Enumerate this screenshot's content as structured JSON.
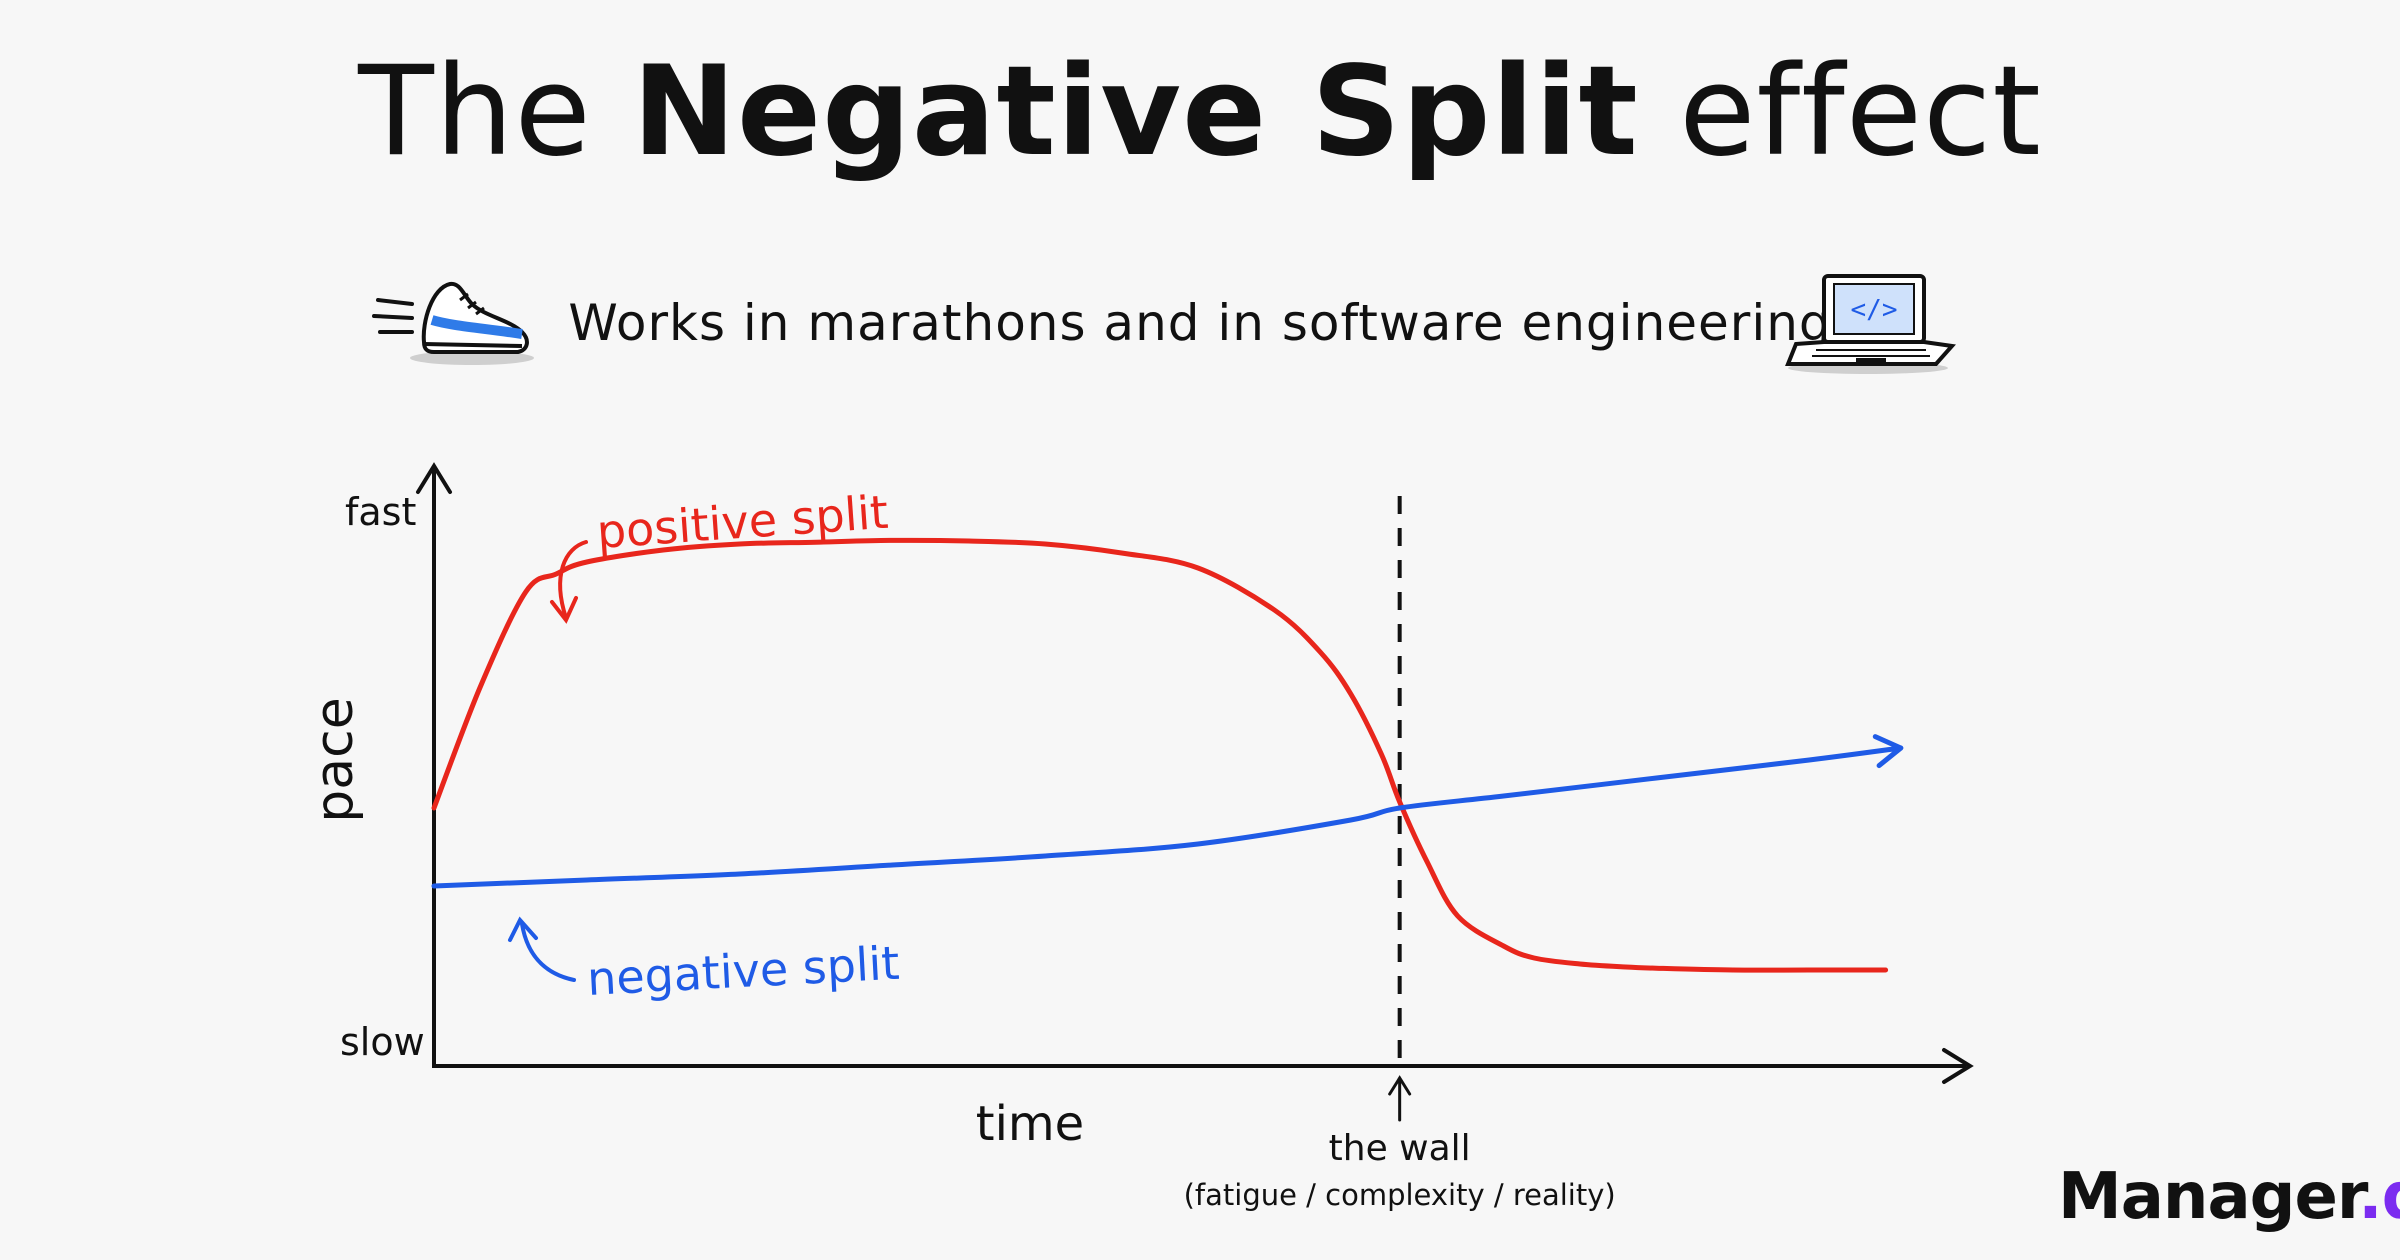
{
  "title": {
    "pre": "The",
    "bold": "Negative Split",
    "post": "effect"
  },
  "subtitle": "Works in marathons and in software engineering",
  "icons": {
    "left": "running-shoe-icon",
    "right": "laptop-code-icon"
  },
  "brand": {
    "name": "Manager",
    "tld": ".dev",
    "accent": "#7b2cf0"
  },
  "chart_data": {
    "type": "line",
    "xlabel": "time",
    "ylabel": "pace",
    "y_tick_labels": {
      "top": "fast",
      "bottom": "slow"
    },
    "xlim": [
      0,
      100
    ],
    "ylim": [
      0,
      100
    ],
    "grid": false,
    "legend": "none",
    "series": [
      {
        "name": "positive split",
        "color": "#e8261c",
        "x": [
          0,
          3,
          6,
          8,
          10,
          15,
          20,
          25,
          30,
          35,
          40,
          45,
          50,
          55,
          58,
          60,
          62,
          63.2,
          65,
          67,
          70,
          72,
          75,
          78,
          80,
          85,
          90,
          95
        ],
        "y": [
          43,
          63,
          79,
          82,
          84,
          86,
          87,
          87.3,
          87.6,
          87.5,
          87,
          85.5,
          83,
          76,
          69,
          62,
          52,
          44,
          34,
          25,
          20,
          18,
          17,
          16.5,
          16.3,
          16,
          16,
          16
        ]
      },
      {
        "name": "negative split",
        "color": "#1f5be6",
        "x": [
          0,
          10,
          20,
          30,
          40,
          50,
          60,
          63.2,
          70,
          80,
          90,
          96
        ],
        "y": [
          30,
          31,
          32,
          33.5,
          35,
          37,
          41,
          43,
          45,
          48,
          51,
          53
        ]
      }
    ],
    "annotations": [
      {
        "text": "positive split",
        "series": 0
      },
      {
        "text": "negative split",
        "series": 1
      },
      {
        "type": "vline",
        "x": 63.2,
        "label": "the wall",
        "sublabel": "(fatigue / complexity / reality)"
      }
    ]
  }
}
